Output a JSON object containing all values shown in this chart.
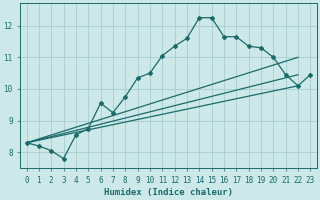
{
  "xlabel": "Humidex (Indice chaleur)",
  "ylabel": "",
  "background_color": "#cce8e8",
  "grid_color": "#aacccc",
  "line_color": "#1a6b6b",
  "xlim": [
    -0.5,
    23.5
  ],
  "ylim": [
    7.5,
    12.7
  ],
  "xticks": [
    0,
    1,
    2,
    3,
    4,
    5,
    6,
    7,
    8,
    9,
    10,
    11,
    12,
    13,
    14,
    15,
    16,
    17,
    18,
    19,
    20,
    21,
    22,
    23
  ],
  "yticks": [
    8,
    9,
    10,
    11,
    12
  ],
  "line1_x": [
    0,
    1,
    2,
    3,
    4,
    5,
    6,
    7,
    8,
    9,
    10,
    11,
    12,
    13,
    14,
    15,
    16,
    17,
    18,
    19,
    20,
    21,
    22,
    23
  ],
  "line1_y": [
    8.3,
    8.2,
    8.05,
    7.8,
    8.55,
    8.75,
    9.55,
    9.25,
    9.75,
    10.35,
    10.5,
    11.05,
    11.35,
    11.6,
    12.25,
    12.25,
    11.65,
    11.65,
    11.35,
    11.3,
    11.0,
    10.45,
    10.1,
    10.45
  ],
  "line2_x": [
    0,
    22
  ],
  "line2_y": [
    8.3,
    10.1
  ],
  "line3_x": [
    0,
    22
  ],
  "line3_y": [
    8.3,
    10.45
  ],
  "line4_x": [
    0,
    22
  ],
  "line4_y": [
    8.3,
    11.0
  ]
}
